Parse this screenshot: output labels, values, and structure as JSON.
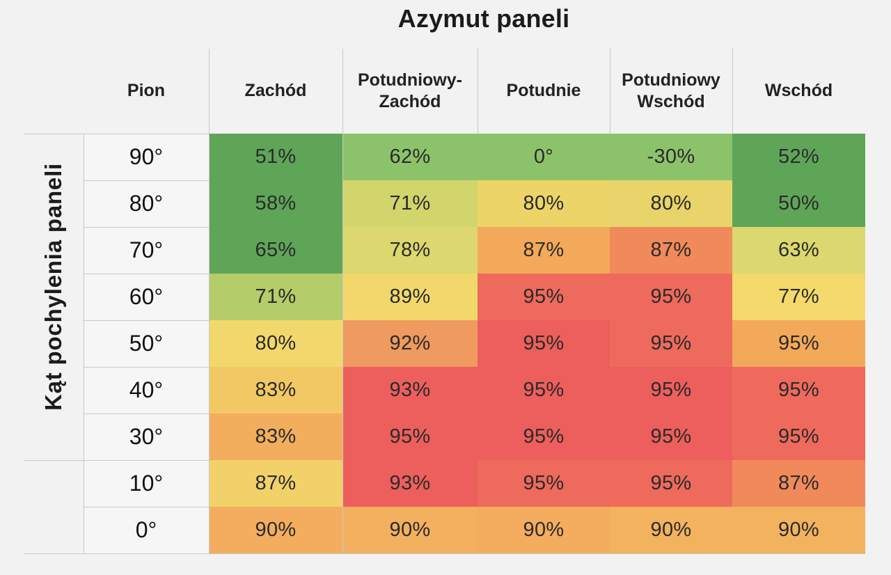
{
  "chart_data": {
    "type": "heatmap",
    "title": "Azymut paneli",
    "ylabel": "Kąt pochylenia paneli",
    "corner_label": "Pion",
    "columns": [
      "Zachód",
      "Potudniowy-\nZachód",
      "Potudnie",
      "Potudniowy\nWschód",
      "Wschód"
    ],
    "rows": [
      {
        "label": "90°",
        "values": [
          "51%",
          "62%",
          "0°",
          "-30%",
          "52%"
        ],
        "colors": [
          "#5fa558",
          "#8cc36a",
          "#8cc36a",
          "#8cc36a",
          "#5fa558"
        ]
      },
      {
        "label": "80°",
        "values": [
          "58%",
          "71%",
          "80%",
          "80%",
          "50%"
        ],
        "colors": [
          "#5fa558",
          "#d2d46c",
          "#ecd469",
          "#e8d46a",
          "#5fa558"
        ]
      },
      {
        "label": "70°",
        "values": [
          "65%",
          "78%",
          "87%",
          "87%",
          "63%"
        ],
        "colors": [
          "#5fa558",
          "#dcd76e",
          "#f3a95a",
          "#f08a5a",
          "#dcd76e"
        ]
      },
      {
        "label": "60°",
        "values": [
          "71%",
          "89%",
          "95%",
          "95%",
          "77%"
        ],
        "colors": [
          "#b5cc6a",
          "#f2d86c",
          "#ee6a5c",
          "#ee6a5c",
          "#f4d96c"
        ]
      },
      {
        "label": "50°",
        "values": [
          "80%",
          "92%",
          "95%",
          "95%",
          "95%"
        ],
        "colors": [
          "#f2d86c",
          "#ef9a5e",
          "#ec5f5c",
          "#ee6a5c",
          "#f3a95a"
        ]
      },
      {
        "label": "40°",
        "values": [
          "83%",
          "93%",
          "95%",
          "95%",
          "95%"
        ],
        "colors": [
          "#f2c864",
          "#ec5f5c",
          "#ec5f5c",
          "#ec5f5c",
          "#ee6a5c"
        ]
      },
      {
        "label": "30°",
        "values": [
          "83%",
          "95%",
          "95%",
          "95%",
          "95%"
        ],
        "colors": [
          "#f3ae5d",
          "#ec5f5c",
          "#ec5f5c",
          "#ec5f5c",
          "#ee6a5c"
        ]
      },
      {
        "label": "10°",
        "values": [
          "87%",
          "93%",
          "95%",
          "95%",
          "87%"
        ],
        "colors": [
          "#f2d16a",
          "#ec5f5c",
          "#ee6a5c",
          "#ee6a5c",
          "#f08a5a"
        ]
      },
      {
        "label": "0°",
        "values": [
          "90%",
          "90%",
          "90%",
          "90%",
          "90%"
        ],
        "colors": [
          "#f4ad5e",
          "#f3b05e",
          "#f4ad5e",
          "#f2b25e",
          "#f3b25e"
        ]
      }
    ]
  }
}
